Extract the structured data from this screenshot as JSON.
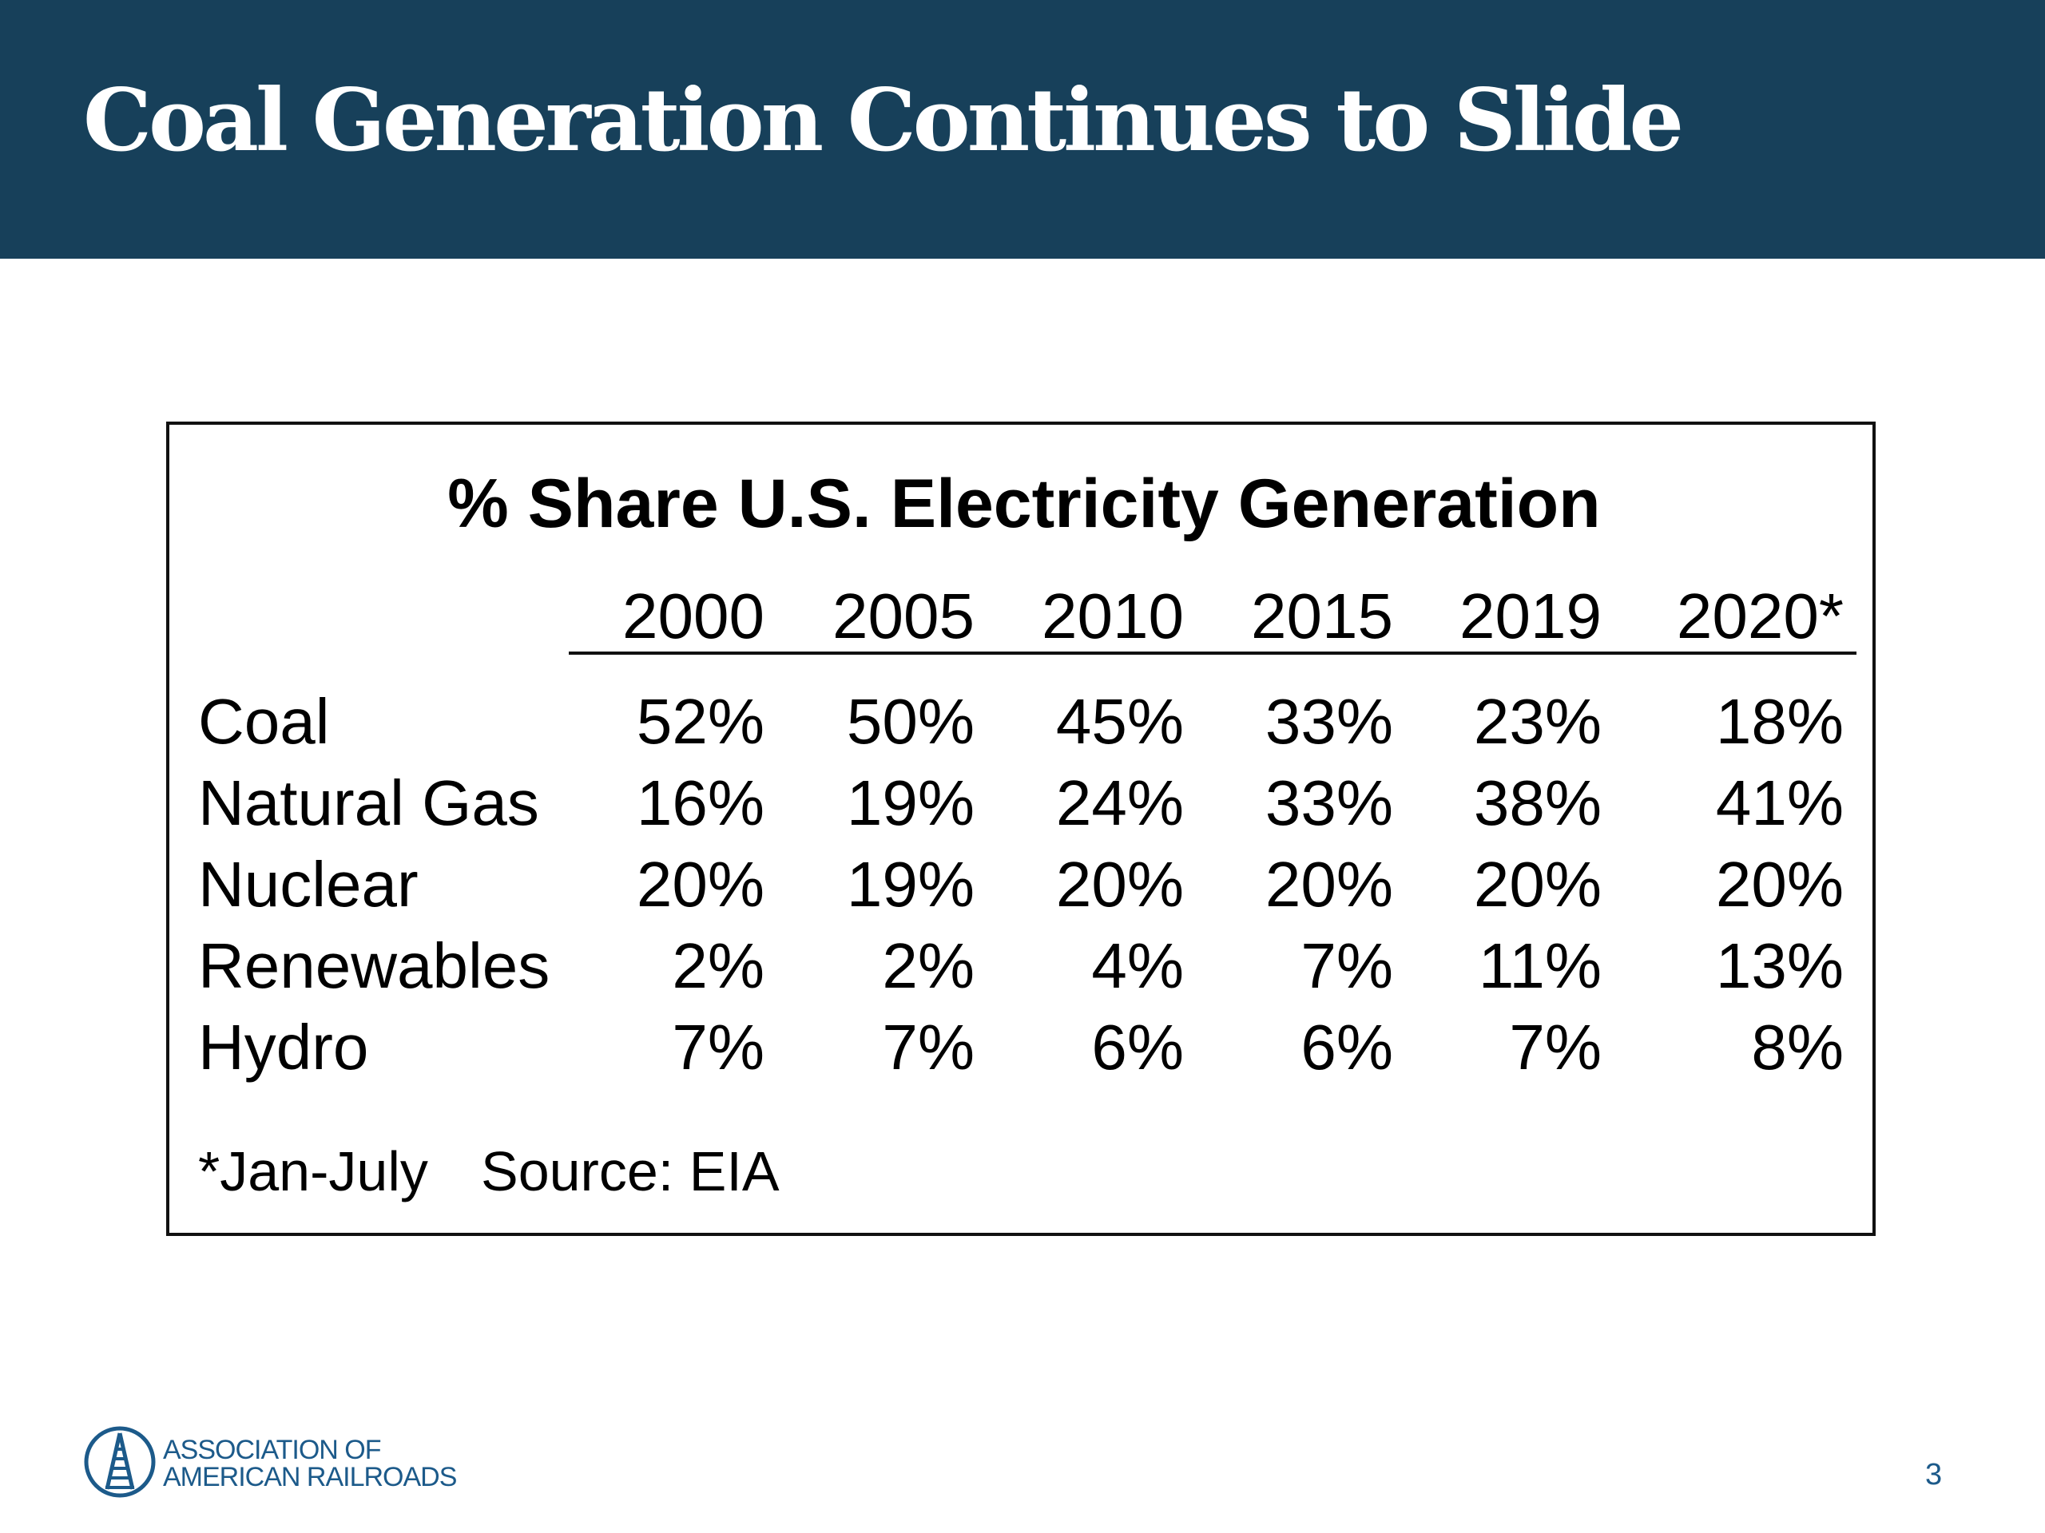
{
  "slide": {
    "title": "Coal Generation Continues to Slide",
    "page_number": "3",
    "logo": {
      "line1": "ASSOCIATION OF",
      "line2": "AMERICAN RAILROADS",
      "icon": "railroad-track-icon"
    },
    "colors": {
      "title_bar": "#17405a",
      "logo": "#1c5a8a"
    }
  },
  "chart_data": {
    "type": "table",
    "title": "% Share U.S. Electricity Generation",
    "columns": [
      "2000",
      "2005",
      "2010",
      "2015",
      "2019",
      "2020*"
    ],
    "rows": [
      {
        "label": "Coal",
        "values": [
          "52%",
          "50%",
          "45%",
          "33%",
          "23%",
          "18%"
        ]
      },
      {
        "label": "Natural Gas",
        "values": [
          "16%",
          "19%",
          "24%",
          "33%",
          "38%",
          "41%"
        ]
      },
      {
        "label": "Nuclear",
        "values": [
          "20%",
          "19%",
          "20%",
          "20%",
          "20%",
          "20%"
        ]
      },
      {
        "label": "Renewables",
        "values": [
          "2%",
          "2%",
          "4%",
          "7%",
          "11%",
          "13%"
        ]
      },
      {
        "label": "Hydro",
        "values": [
          "7%",
          "7%",
          "6%",
          "6%",
          "7%",
          "8%"
        ]
      }
    ],
    "footnote": "*Jan-July",
    "source": "Source: EIA"
  }
}
